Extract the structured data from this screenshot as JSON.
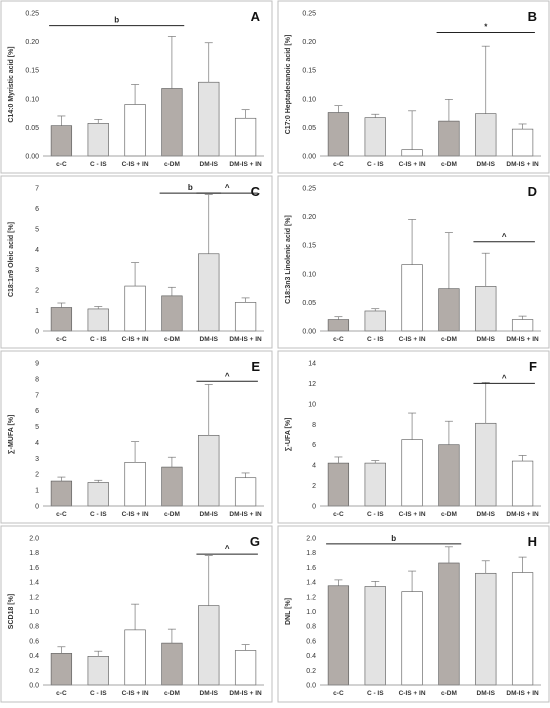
{
  "colors": {
    "dark_bar": "#b2aca8",
    "light_bar": "#e3e3e3",
    "white_bar": "#ffffff",
    "stroke": "#555555",
    "panel_border": "#bfbfbf"
  },
  "chart_data": [
    {
      "letter": "A",
      "type": "bar",
      "ylabel": "C14:0 Myristic acid  [%]",
      "categories": [
        "c-C",
        "C - IS",
        "C-IS + IN",
        "c-DM",
        "DM-IS",
        "DM-IS + IN"
      ],
      "bar_styles": [
        "dark",
        "light",
        "white",
        "dark",
        "light",
        "white"
      ],
      "values": [
        0.053,
        0.057,
        0.09,
        0.118,
        0.129,
        0.066
      ],
      "errors": [
        0.017,
        0.007,
        0.035,
        0.091,
        0.069,
        0.015
      ],
      "ylim": [
        0,
        0.25
      ],
      "yticks": [
        "0.00",
        "0.05",
        "0.10",
        "0.15",
        "0.20",
        "0.25"
      ],
      "annotations": [
        {
          "label": "b",
          "from": 0,
          "to": 3,
          "y": 0.228
        }
      ]
    },
    {
      "letter": "B",
      "type": "bar",
      "ylabel": "C17:0 Heptadecanoic acid  [%]",
      "categories": [
        "c-C",
        "C - IS",
        "C-IS + IN",
        "c-DM",
        "DM-IS",
        "DM-IS + IN"
      ],
      "bar_styles": [
        "dark",
        "light",
        "white",
        "dark",
        "light",
        "white"
      ],
      "values": [
        0.076,
        0.067,
        0.011,
        0.061,
        0.074,
        0.047
      ],
      "errors": [
        0.012,
        0.006,
        0.068,
        0.038,
        0.118,
        0.009
      ],
      "ylim": [
        0,
        0.25
      ],
      "yticks": [
        "0.00",
        "0.05",
        "0.10",
        "0.15",
        "0.20",
        "0.25"
      ],
      "annotations": [
        {
          "label": "*",
          "from": 3,
          "to": 5,
          "y": 0.216
        }
      ]
    },
    {
      "letter": "C",
      "type": "bar",
      "ylabel": "C18:1n9 Oleic acid  [%]",
      "categories": [
        "c-C",
        "C - IS",
        "C-IS + IN",
        "c-DM",
        "DM-IS",
        "DM-IS + IN"
      ],
      "bar_styles": [
        "dark",
        "light",
        "white",
        "dark",
        "light",
        "white"
      ],
      "values": [
        1.15,
        1.08,
        2.2,
        1.72,
        3.78,
        1.4
      ],
      "errors": [
        0.22,
        0.12,
        1.15,
        0.42,
        2.9,
        0.22
      ],
      "ylim": [
        0,
        7
      ],
      "yticks": [
        "0",
        "1",
        "2",
        "3",
        "4",
        "5",
        "6",
        "7"
      ],
      "annotations": [
        {
          "label": "b",
          "from": 3,
          "to": 4,
          "y": 6.75
        },
        {
          "label": "^",
          "from": 4,
          "to": 5,
          "y": 6.75
        }
      ]
    },
    {
      "letter": "D",
      "type": "bar",
      "ylabel": "C18:3n3 Linolenic acid  [%]",
      "categories": [
        "c-C",
        "C - IS",
        "C-IS + IN",
        "c-DM",
        "DM-IS",
        "DM-IS + IN"
      ],
      "bar_styles": [
        "dark",
        "light",
        "white",
        "dark",
        "light",
        "white"
      ],
      "values": [
        0.02,
        0.035,
        0.116,
        0.074,
        0.078,
        0.02
      ],
      "errors": [
        0.005,
        0.004,
        0.079,
        0.098,
        0.058,
        0.006
      ],
      "ylim": [
        0,
        0.25
      ],
      "yticks": [
        "0.00",
        "0.05",
        "0.10",
        "0.15",
        "0.20",
        "0.25"
      ],
      "annotations": [
        {
          "label": "^",
          "from": 4,
          "to": 5,
          "y": 0.156
        }
      ]
    },
    {
      "letter": "E",
      "type": "bar",
      "ylabel": "∑-MUFA  [%]",
      "categories": [
        "c-C",
        "C - IS",
        "C-IS + IN",
        "c-DM",
        "DM-IS",
        "DM-IS + IN"
      ],
      "bar_styles": [
        "dark",
        "light",
        "white",
        "dark",
        "light",
        "white"
      ],
      "values": [
        1.57,
        1.48,
        2.75,
        2.45,
        4.45,
        1.78
      ],
      "errors": [
        0.25,
        0.14,
        1.3,
        0.62,
        3.2,
        0.3
      ],
      "ylim": [
        0,
        9
      ],
      "yticks": [
        "0",
        "1",
        "2",
        "3",
        "4",
        "5",
        "6",
        "7",
        "8",
        "9"
      ],
      "annotations": [
        {
          "label": "^",
          "from": 4,
          "to": 5,
          "y": 7.85
        }
      ]
    },
    {
      "letter": "F",
      "type": "bar",
      "ylabel": "∑-UFA  [%]",
      "categories": [
        "c-C",
        "C - IS",
        "C-IS + IN",
        "c-DM",
        "DM-IS",
        "DM-IS + IN"
      ],
      "bar_styles": [
        "dark",
        "light",
        "white",
        "dark",
        "light",
        "white"
      ],
      "values": [
        4.2,
        4.2,
        6.5,
        6.0,
        8.1,
        4.4
      ],
      "errors": [
        0.6,
        0.25,
        2.6,
        2.3,
        4.0,
        0.55
      ],
      "ylim": [
        0,
        14
      ],
      "yticks": [
        "0",
        "2",
        "4",
        "6",
        "8",
        "10",
        "12",
        "14"
      ],
      "annotations": [
        {
          "label": "^",
          "from": 4,
          "to": 5,
          "y": 12.0
        }
      ]
    },
    {
      "letter": "G",
      "type": "bar",
      "ylabel": "SCD18  [%]",
      "categories": [
        "c-C",
        "C - IS",
        "C-IS + IN",
        "c-DM",
        "DM-IS",
        "DM-IS + IN"
      ],
      "bar_styles": [
        "dark",
        "light",
        "white",
        "dark",
        "light",
        "white"
      ],
      "values": [
        0.43,
        0.39,
        0.75,
        0.57,
        1.08,
        0.47
      ],
      "errors": [
        0.09,
        0.07,
        0.35,
        0.19,
        0.68,
        0.08
      ],
      "ylim": [
        0,
        2.0
      ],
      "yticks": [
        "0.0",
        "0.2",
        "0.4",
        "0.6",
        "0.8",
        "1.0",
        "1.2",
        "1.4",
        "1.6",
        "1.8",
        "2.0"
      ],
      "annotations": [
        {
          "label": "^",
          "from": 4,
          "to": 5,
          "y": 1.78
        }
      ]
    },
    {
      "letter": "H",
      "type": "bar",
      "ylabel": "DNL  [%]",
      "categories": [
        "c-C",
        "C - IS",
        "C-IS + IN",
        "c-DM",
        "DM-IS",
        "DM-IS + IN"
      ],
      "bar_styles": [
        "dark",
        "light",
        "white",
        "dark",
        "light",
        "white"
      ],
      "values": [
        1.35,
        1.34,
        1.27,
        1.66,
        1.52,
        1.53
      ],
      "errors": [
        0.08,
        0.07,
        0.28,
        0.22,
        0.17,
        0.21
      ],
      "ylim": [
        0,
        2.0
      ],
      "yticks": [
        "0.0",
        "0.2",
        "0.4",
        "0.6",
        "0.8",
        "1.0",
        "1.2",
        "1.4",
        "1.6",
        "1.8",
        "2.0"
      ],
      "annotations": [
        {
          "label": "b",
          "from": 0,
          "to": 3,
          "y": 1.92
        }
      ]
    }
  ]
}
